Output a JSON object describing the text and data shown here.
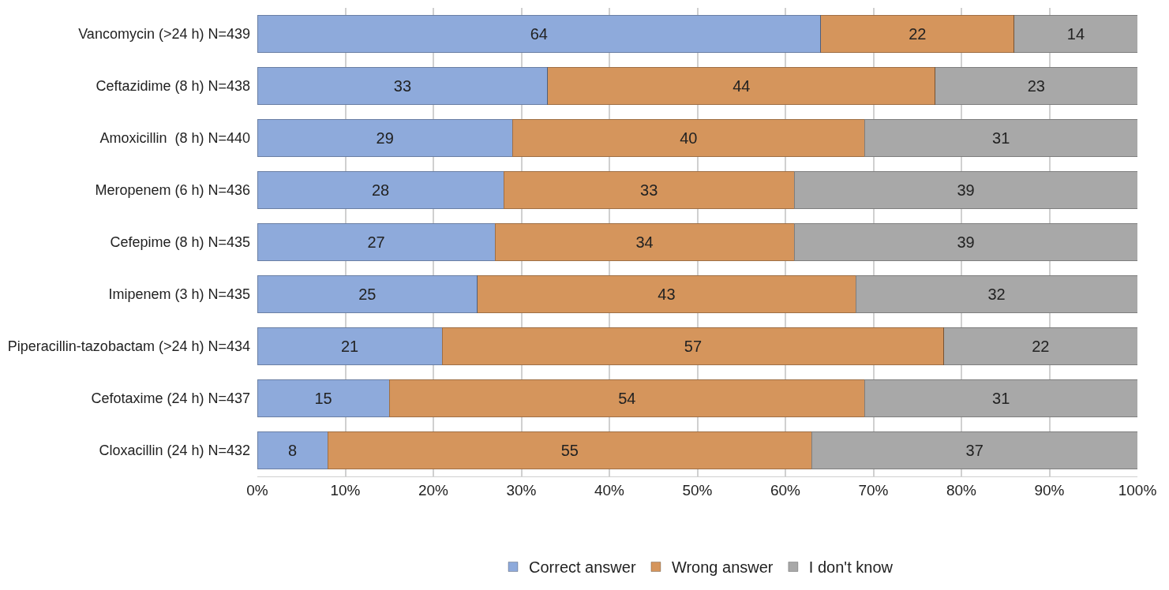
{
  "chart_data": {
    "type": "bar",
    "orientation": "horizontal",
    "stacked": true,
    "data_labels": true,
    "grid": "x",
    "legend": "bottom",
    "categories": [
      "Vancomycin (>24 h) N=439",
      "Ceftazidime (8 h) N=438",
      "Amoxicillin  (8 h) N=440",
      "Meropenem (6 h) N=436",
      "Cefepime (8 h) N=435",
      "Imipenem (3 h) N=435",
      "Piperacillin-tazobactam (>24 h) N=434",
      "Cefotaxime (24 h) N=437",
      "Cloxacillin (24 h) N=432"
    ],
    "series": [
      {
        "name": "Correct answer",
        "color": "#8eaadb",
        "values": [
          64,
          33,
          29,
          28,
          27,
          25,
          21,
          15,
          8
        ]
      },
      {
        "name": "Wrong answer",
        "color": "#d5955c",
        "values": [
          22,
          44,
          40,
          33,
          34,
          43,
          57,
          54,
          55
        ]
      },
      {
        "name": "I don't know",
        "color": "#a8a8a8",
        "values": [
          14,
          23,
          31,
          39,
          39,
          32,
          22,
          31,
          37
        ]
      }
    ],
    "xlim": [
      0,
      100
    ],
    "xticks": [
      {
        "value": 0,
        "label": "0%"
      },
      {
        "value": 10,
        "label": "10%"
      },
      {
        "value": 20,
        "label": "20%"
      },
      {
        "value": 30,
        "label": "30%"
      },
      {
        "value": 40,
        "label": "40%"
      },
      {
        "value": 50,
        "label": "50%"
      },
      {
        "value": 60,
        "label": "60%"
      },
      {
        "value": 70,
        "label": "70%"
      },
      {
        "value": 80,
        "label": "80%"
      },
      {
        "value": 90,
        "label": "90%"
      },
      {
        "value": 100,
        "label": "100%"
      }
    ]
  }
}
